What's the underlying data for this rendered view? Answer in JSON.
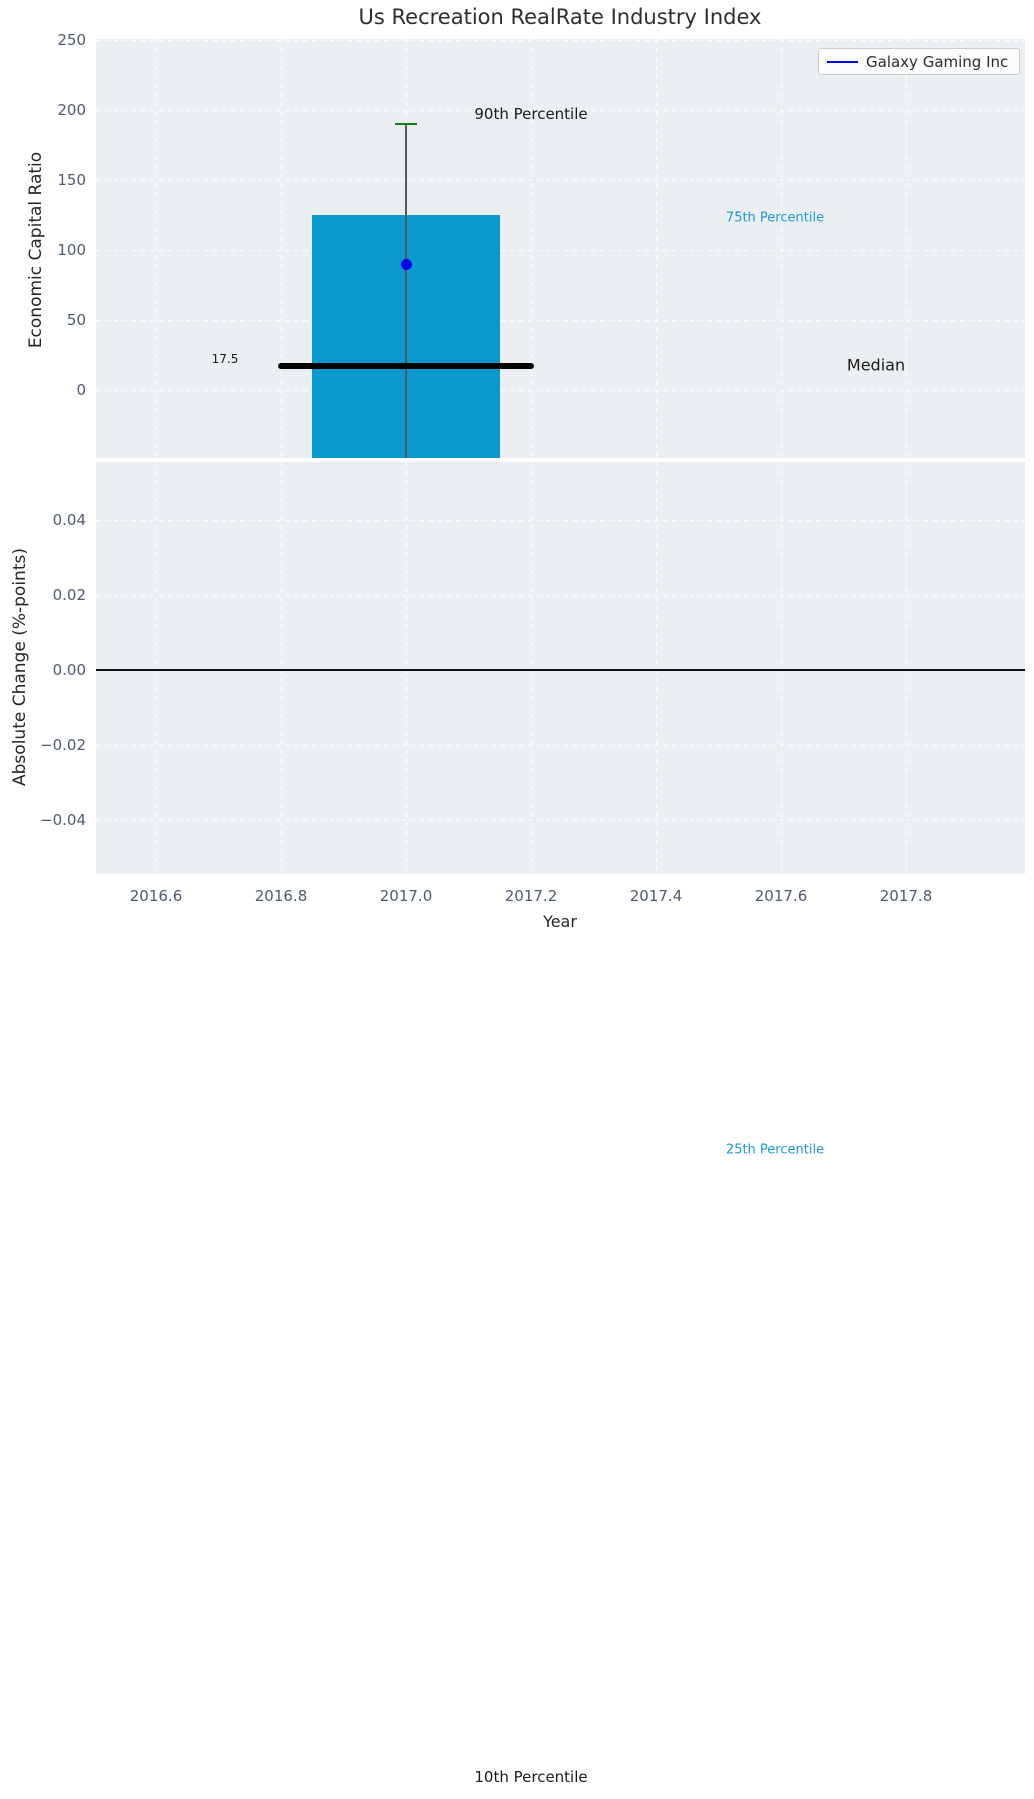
{
  "chart_data": {
    "type": "box",
    "title": "Us Recreation RealRate Industry Index",
    "xlabel": "Year",
    "xlim": [
      2016.5,
      2018.0
    ],
    "xtick_values": [
      2016.6,
      2016.8,
      2017.0,
      2017.2,
      2017.4,
      2017.6,
      2017.8
    ],
    "xtick_labels": [
      "2016.6",
      "2016.8",
      "2017.0",
      "2017.2",
      "2017.4",
      "2017.6",
      "2017.8"
    ],
    "grid": true,
    "legend": {
      "position": "upper right",
      "entries": [
        {
          "label": "Galaxy Gaming Inc",
          "color": "#0000ee"
        }
      ]
    },
    "subplots": [
      {
        "ylabel": "Economic Capital Ratio",
        "ylim": [
          -48.6,
          250.7
        ],
        "ytick_values": [
          0,
          50,
          100,
          150,
          200,
          250
        ],
        "ytick_labels": [
          "0",
          "50",
          "100",
          "150",
          "200",
          "250"
        ],
        "box": {
          "x": 2017.0,
          "median": 17.5,
          "p75": 125,
          "p90": 190,
          "p25": -543,
          "p10": -991,
          "box_halfwidth_years": 0.151,
          "median_halfwidth_years": 0.205,
          "cap_halfwidth_years": 0.017,
          "box_color": "#0999cf",
          "median_color": "#000000",
          "whisker_color": "#55575a",
          "cap_color": "#0e7e13"
        },
        "company_point": {
          "name": "Galaxy Gaming Inc",
          "x": 2017.0,
          "value": 90,
          "color": "#0000ee"
        },
        "annotations": [
          {
            "id": "p90",
            "text": "90th Percentile",
            "color": "#1a1a1a",
            "font_px": 15
          },
          {
            "id": "p75",
            "text": "75th Percentile",
            "color": "#1b9ad2",
            "font_px": 13
          },
          {
            "id": "median",
            "text": "Median",
            "color": "#1a1a1a",
            "font_px": 16
          },
          {
            "id": "median_value",
            "text": "17.5",
            "color": "#1a1a1a",
            "font_px": 12
          },
          {
            "id": "p25",
            "text": "25th Percentile",
            "color": "#1b9ad2",
            "font_px": 13
          },
          {
            "id": "p10",
            "text": "10th Percentile",
            "color": "#1a1a1a",
            "font_px": 15
          }
        ]
      },
      {
        "ylabel": "Absolute Change (%-points)",
        "ylim": [
          -0.0544,
          0.0555
        ],
        "ytick_values": [
          0.04,
          0.02,
          0.0,
          -0.02,
          -0.04
        ],
        "ytick_labels": [
          "0.04",
          "0.02",
          "0.00",
          "−0.02",
          "−0.04"
        ],
        "zero_line": 0.0,
        "series": []
      }
    ],
    "colors": {
      "axes_background": "#eceff1",
      "grid": "#ffffff",
      "tick_label": "#4d5b6e",
      "text": "#262626"
    }
  }
}
